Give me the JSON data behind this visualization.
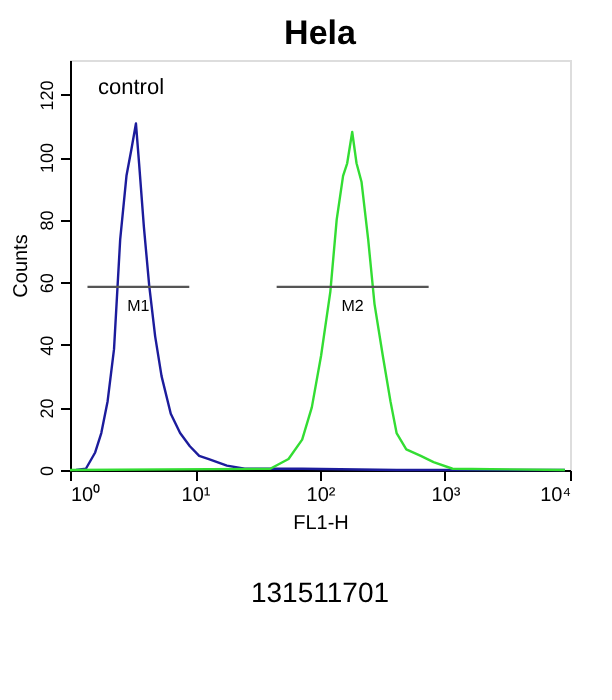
{
  "chart_data": {
    "type": "line",
    "title": "Hela",
    "xlabel": "FL1-H",
    "ylabel": "Counts",
    "log": "x",
    "xlim": [
      1,
      10000
    ],
    "ylim": [
      0,
      131
    ],
    "xticks": [
      {
        "value": 1,
        "label": "10⁰"
      },
      {
        "value": 10,
        "label": "10¹"
      },
      {
        "value": 100,
        "label": "10²"
      },
      {
        "value": 1000,
        "label": "10³"
      },
      {
        "value": 10000,
        "label": "10⁴"
      }
    ],
    "yticks": [
      0,
      20,
      40,
      60,
      80,
      100,
      120
    ],
    "grid": false,
    "marker": "none",
    "line_style": "solid",
    "series": [
      {
        "color": "#1c1c9c",
        "x": [
          1.12,
          1.34,
          1.59,
          1.78,
          2.0,
          2.25,
          2.52,
          2.83,
          3.1,
          3.37,
          3.57,
          3.9,
          4.3,
          4.8,
          5.4,
          6.4,
          7.6,
          9.1,
          10.8,
          12.9,
          18,
          25,
          72,
          410,
          9100
        ],
        "values": [
          0,
          0.4,
          5.6,
          11.8,
          22,
          38.6,
          73.6,
          94,
          102.5,
          110.7,
          98,
          77.7,
          59,
          42.7,
          30,
          18,
          11.8,
          7.6,
          4.5,
          3.5,
          1.4,
          0.4,
          0.4,
          0,
          0
        ]
      },
      {
        "color": "#33dd33",
        "x": [
          1,
          40,
          56,
          72,
          86,
          102,
          121,
          136,
          153,
          165,
          181,
          196,
          215,
          243,
          273,
          318,
          366,
          410,
          490,
          640,
          810,
          1150,
          9100
        ],
        "values": [
          0,
          0.4,
          3.5,
          9.7,
          20,
          36.5,
          57,
          80,
          94,
          98,
          108,
          98,
          92,
          73.6,
          53,
          36.5,
          22,
          11.8,
          6.6,
          4.5,
          2.5,
          0.4,
          0
        ]
      },
      {
        "name": "M1",
        "color": "#555555",
        "x": [
          1.38,
          9.0
        ],
        "values": [
          58.5,
          58.5
        ]
      },
      {
        "name": "M2",
        "color": "#555555",
        "x": [
          45,
          740
        ],
        "values": [
          58.5,
          58.5
        ]
      }
    ],
    "annotations": [
      "control",
      "131511701"
    ]
  }
}
